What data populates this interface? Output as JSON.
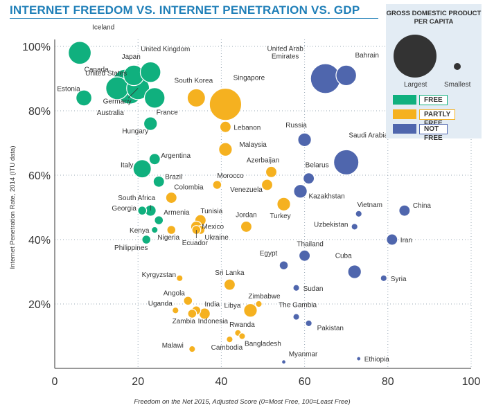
{
  "title": "INTERNET FREEDOM VS. INTERNET PENETRATION VS. GDP",
  "legend": {
    "size_title": "GROSS DOMESTIC PRODUCT PER CAPITA",
    "largest": "Largest",
    "smallest": "Smallest",
    "categories": [
      {
        "key": "free",
        "label": "FREE",
        "color": "#10b07e"
      },
      {
        "key": "partly",
        "label": "PARTLY FREE",
        "color": "#f5b120"
      },
      {
        "key": "notfree",
        "label": "NOT FREE",
        "color": "#4f66ad"
      }
    ]
  },
  "chart_data": {
    "type": "scatter",
    "title": "INTERNET FREEDOM VS. INTERNET PENETRATION VS. GDP",
    "xlabel": "Freedom on the Net 2015, Adjusted Score (0=Most Free, 100=Least Free)",
    "ylabel": "Internet Penetration Rate, 2014 (ITU data)",
    "xlim": [
      0,
      100
    ],
    "ylim": [
      0,
      100
    ],
    "x_ticks": [
      0,
      20,
      40,
      60,
      80,
      100
    ],
    "y_ticks": [
      20,
      40,
      60,
      80,
      100
    ],
    "y_tick_labels": [
      "20%",
      "40%",
      "60%",
      "80%",
      "100%"
    ],
    "grid": "dotted",
    "size_encoding": "GDP per capita",
    "points": [
      {
        "name": "Iceland",
        "x": 6,
        "y": 98,
        "size": 9,
        "cat": "free"
      },
      {
        "name": "Japan",
        "x": 19,
        "y": 91,
        "size": 8,
        "cat": "free"
      },
      {
        "name": "United Kingdom",
        "x": 23,
        "y": 92,
        "size": 8,
        "cat": "free"
      },
      {
        "name": "United States",
        "x": 17,
        "y": 89,
        "size": 10,
        "cat": "free"
      },
      {
        "name": "Canada",
        "x": 15,
        "y": 87,
        "size": 9,
        "cat": "free"
      },
      {
        "name": "Estonia",
        "x": 7,
        "y": 84,
        "size": 6,
        "cat": "free"
      },
      {
        "name": "Germany",
        "x": 20,
        "y": 87,
        "size": 9,
        "cat": "free"
      },
      {
        "name": "Australia",
        "x": 18,
        "y": 86,
        "size": 10,
        "cat": "free"
      },
      {
        "name": "France",
        "x": 24,
        "y": 84,
        "size": 8,
        "cat": "free"
      },
      {
        "name": "Hungary",
        "x": 23,
        "y": 76,
        "size": 5,
        "cat": "free"
      },
      {
        "name": "Argentina",
        "x": 24,
        "y": 65,
        "size": 4,
        "cat": "free"
      },
      {
        "name": "Italy",
        "x": 21,
        "y": 62,
        "size": 7,
        "cat": "free"
      },
      {
        "name": "Brazil",
        "x": 25,
        "y": 58,
        "size": 4,
        "cat": "free"
      },
      {
        "name": "Georgia",
        "x": 21,
        "y": 49,
        "size": 3,
        "cat": "free"
      },
      {
        "name": "South Africa",
        "x": 23,
        "y": 49,
        "size": 4,
        "cat": "free"
      },
      {
        "name": "Armenia",
        "x": 25,
        "y": 46,
        "size": 3,
        "cat": "free"
      },
      {
        "name": "Kenya",
        "x": 24,
        "y": 43,
        "size": 2,
        "cat": "free"
      },
      {
        "name": "Philippines",
        "x": 22,
        "y": 40,
        "size": 3,
        "cat": "free"
      },
      {
        "name": "South Korea",
        "x": 34,
        "y": 84,
        "size": 7,
        "cat": "partly"
      },
      {
        "name": "Singapore",
        "x": 41,
        "y": 82,
        "size": 13,
        "cat": "partly"
      },
      {
        "name": "Lebanon",
        "x": 41,
        "y": 75,
        "size": 4,
        "cat": "partly"
      },
      {
        "name": "Malaysia",
        "x": 41,
        "y": 68,
        "size": 5,
        "cat": "partly"
      },
      {
        "name": "Colombia",
        "x": 28,
        "y": 53,
        "size": 4,
        "cat": "partly"
      },
      {
        "name": "Morocco",
        "x": 39,
        "y": 57,
        "size": 3,
        "cat": "partly"
      },
      {
        "name": "Azerbaijan",
        "x": 52,
        "y": 61,
        "size": 4,
        "cat": "partly"
      },
      {
        "name": "Venezuela",
        "x": 51,
        "y": 57,
        "size": 4,
        "cat": "partly"
      },
      {
        "name": "Turkey",
        "x": 55,
        "y": 51,
        "size": 5,
        "cat": "partly"
      },
      {
        "name": "Tunisia",
        "x": 35,
        "y": 46,
        "size": 4,
        "cat": "partly"
      },
      {
        "name": "Mexico",
        "x": 34,
        "y": 44,
        "size": 4,
        "cat": "partly"
      },
      {
        "name": "Ukraine",
        "x": 35,
        "y": 43,
        "size": 3,
        "cat": "partly"
      },
      {
        "name": "Ecuador",
        "x": 34,
        "y": 43,
        "size": 3,
        "cat": "partly"
      },
      {
        "name": "Nigeria",
        "x": 28,
        "y": 43,
        "size": 3,
        "cat": "partly"
      },
      {
        "name": "Jordan",
        "x": 46,
        "y": 44,
        "size": 4,
        "cat": "partly"
      },
      {
        "name": "Kyrgyzstan",
        "x": 30,
        "y": 28,
        "size": 2,
        "cat": "partly"
      },
      {
        "name": "Sri Lanka",
        "x": 42,
        "y": 26,
        "size": 4,
        "cat": "partly"
      },
      {
        "name": "Angola",
        "x": 32,
        "y": 21,
        "size": 3,
        "cat": "partly"
      },
      {
        "name": "India",
        "x": 34,
        "y": 18,
        "size": 3,
        "cat": "partly"
      },
      {
        "name": "Uganda",
        "x": 29,
        "y": 18,
        "size": 2,
        "cat": "partly"
      },
      {
        "name": "Zambia",
        "x": 33,
        "y": 17,
        "size": 3,
        "cat": "partly"
      },
      {
        "name": "Indonesia",
        "x": 36,
        "y": 17,
        "size": 4,
        "cat": "partly"
      },
      {
        "name": "Zimbabwe",
        "x": 49,
        "y": 20,
        "size": 2,
        "cat": "partly"
      },
      {
        "name": "Libya",
        "x": 47,
        "y": 18,
        "size": 5,
        "cat": "partly"
      },
      {
        "name": "Rwanda",
        "x": 44,
        "y": 11,
        "size": 2,
        "cat": "partly"
      },
      {
        "name": "Bangladesh",
        "x": 45,
        "y": 10,
        "size": 2,
        "cat": "partly"
      },
      {
        "name": "Cambodia",
        "x": 42,
        "y": 9,
        "size": 2,
        "cat": "partly"
      },
      {
        "name": "Malawi",
        "x": 33,
        "y": 6,
        "size": 2,
        "cat": "partly"
      },
      {
        "name": "United Arab Emirates",
        "x": 65,
        "y": 90,
        "size": 12,
        "cat": "notfree"
      },
      {
        "name": "Bahrain",
        "x": 70,
        "y": 91,
        "size": 8,
        "cat": "notfree"
      },
      {
        "name": "Russia",
        "x": 60,
        "y": 71,
        "size": 5,
        "cat": "notfree"
      },
      {
        "name": "Saudi Arabia",
        "x": 70,
        "y": 64,
        "size": 10,
        "cat": "notfree"
      },
      {
        "name": "Belarus",
        "x": 61,
        "y": 59,
        "size": 4,
        "cat": "notfree"
      },
      {
        "name": "Kazakhstan",
        "x": 59,
        "y": 55,
        "size": 5,
        "cat": "notfree"
      },
      {
        "name": "Vietnam",
        "x": 73,
        "y": 48,
        "size": 2,
        "cat": "notfree"
      },
      {
        "name": "China",
        "x": 84,
        "y": 49,
        "size": 4,
        "cat": "notfree"
      },
      {
        "name": "Uzbekistan",
        "x": 72,
        "y": 44,
        "size": 2,
        "cat": "notfree"
      },
      {
        "name": "Iran",
        "x": 81,
        "y": 40,
        "size": 4,
        "cat": "notfree"
      },
      {
        "name": "Thailand",
        "x": 60,
        "y": 35,
        "size": 4,
        "cat": "notfree"
      },
      {
        "name": "Egypt",
        "x": 55,
        "y": 32,
        "size": 3,
        "cat": "notfree"
      },
      {
        "name": "Cuba",
        "x": 72,
        "y": 30,
        "size": 5,
        "cat": "notfree"
      },
      {
        "name": "Syria",
        "x": 79,
        "y": 28,
        "size": 2,
        "cat": "notfree"
      },
      {
        "name": "Sudan",
        "x": 58,
        "y": 25,
        "size": 2,
        "cat": "notfree"
      },
      {
        "name": "The Gambia",
        "x": 58,
        "y": 16,
        "size": 2,
        "cat": "notfree"
      },
      {
        "name": "Pakistan",
        "x": 61,
        "y": 14,
        "size": 2,
        "cat": "notfree"
      },
      {
        "name": "Myanmar",
        "x": 55,
        "y": 2,
        "size": 1,
        "cat": "notfree"
      },
      {
        "name": "Ethiopia",
        "x": 73,
        "y": 3,
        "size": 1,
        "cat": "notfree"
      }
    ]
  }
}
